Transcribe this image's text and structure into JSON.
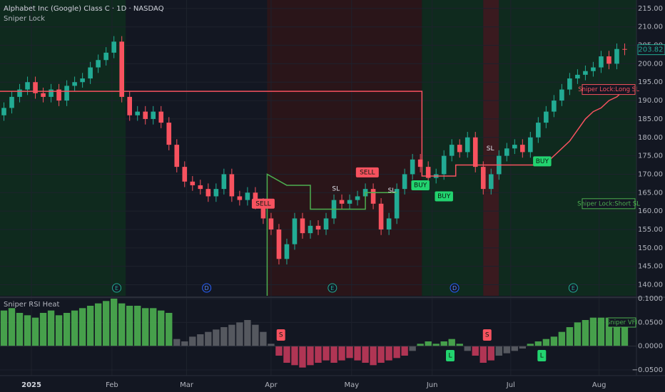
{
  "chart_data": {
    "type": "candlestick",
    "title": "Alphabet Inc (Google) Class C · 1D · NASDAQ",
    "subtitle": "Sniper Lock",
    "up_color": "#22ab94",
    "down_color": "#f7525f",
    "xlim": [
      -1,
      161
    ],
    "ylim": [
      137,
      217.3
    ],
    "xticks": [
      {
        "value": 7,
        "label": "2025"
      },
      {
        "value": 27.5,
        "label": "Feb"
      },
      {
        "value": 46.5,
        "label": "Mar"
      },
      {
        "value": 68,
        "label": "Apr"
      },
      {
        "value": 88.5,
        "label": "May"
      },
      {
        "value": 109,
        "label": "Jun"
      },
      {
        "value": 129,
        "label": "Jul"
      },
      {
        "value": 151.5,
        "label": "Aug"
      }
    ],
    "yticks": [
      {
        "value": 140,
        "label": "140.00"
      },
      {
        "value": 145,
        "label": "145.00"
      },
      {
        "value": 150,
        "label": "150.00"
      },
      {
        "value": 155,
        "label": "155.00"
      },
      {
        "value": 160,
        "label": "160.00"
      },
      {
        "value": 165,
        "label": "165.00"
      },
      {
        "value": 170,
        "label": "170.00"
      },
      {
        "value": 175,
        "label": "175.00"
      },
      {
        "value": 180,
        "label": "180.00"
      },
      {
        "value": 185,
        "label": "185.00"
      },
      {
        "value": 190,
        "label": "190.00"
      },
      {
        "value": 195,
        "label": "195.00"
      },
      {
        "value": 200,
        "label": "200.00"
      },
      {
        "value": 205,
        "label": "205.00"
      },
      {
        "value": 210,
        "label": "210.00"
      },
      {
        "value": 215,
        "label": "215.00"
      }
    ],
    "grid": true,
    "last_price": 203.82,
    "zones": [
      {
        "from": -1,
        "to": 31,
        "color": "#0f2a1e"
      },
      {
        "from": 67,
        "to": 106.4,
        "color": "#2a1519"
      },
      {
        "from": 106.4,
        "to": 122,
        "color": "#0f2a1e"
      },
      {
        "from": 122,
        "to": 126,
        "color": "#3a1a1f"
      },
      {
        "from": 126,
        "to": 161,
        "color": "#0f2a1e"
      }
    ],
    "candles": {
      "x": [
        0,
        2,
        4,
        6,
        8,
        10,
        12,
        14,
        16,
        18,
        20,
        22,
        24,
        26,
        28,
        30,
        32,
        34,
        36,
        38,
        40,
        42,
        44,
        46,
        48,
        50,
        52,
        54,
        56,
        58,
        60,
        62,
        64,
        66,
        68,
        70,
        72,
        74,
        76,
        78,
        80,
        82,
        84,
        86,
        88,
        90,
        92,
        94,
        96,
        98,
        100,
        102,
        104,
        106,
        108,
        110,
        112,
        114,
        116,
        118,
        120,
        122,
        124,
        126,
        128,
        130,
        132,
        134,
        136,
        138,
        140,
        142,
        144,
        146,
        148,
        150,
        152,
        154,
        156,
        158
      ],
      "open": [
        186,
        188,
        191,
        193,
        195,
        192,
        191,
        193,
        190,
        194,
        195,
        196,
        199,
        201,
        203,
        206,
        191,
        186,
        187,
        185,
        187,
        184,
        178,
        172,
        168,
        167,
        166,
        164,
        166,
        170,
        164,
        163,
        165,
        162,
        158,
        155,
        147,
        151,
        158,
        154,
        156,
        155,
        158,
        163,
        162,
        163,
        164,
        166,
        162,
        155,
        158,
        166,
        170,
        174,
        172,
        169,
        170,
        175,
        178,
        176,
        180,
        172,
        166,
        170,
        175,
        177,
        178,
        176,
        180,
        184,
        187,
        190,
        193,
        196,
        197,
        198,
        199,
        202,
        200,
        204
      ],
      "high": [
        189.5,
        192.5,
        194.5,
        196.5,
        196.5,
        193.5,
        194.5,
        194.5,
        195.5,
        196.5,
        197.5,
        200.5,
        202.5,
        204.5,
        207.5,
        207.5,
        192.5,
        188.5,
        188.5,
        188.5,
        188.5,
        185.5,
        179.5,
        173.5,
        169.5,
        168.5,
        167.5,
        167.5,
        171.5,
        171.5,
        165.5,
        166.5,
        166.5,
        163.5,
        159.5,
        156.5,
        152.5,
        159.5,
        159.5,
        157.5,
        157.5,
        159.5,
        164.5,
        164.5,
        164.5,
        165.5,
        167.5,
        167.5,
        163.5,
        159.5,
        167.5,
        171.5,
        175.5,
        175.5,
        173.5,
        171.5,
        176.5,
        179.5,
        179.5,
        181.5,
        181.5,
        173.5,
        171.5,
        176.5,
        178.5,
        179.5,
        179.5,
        181.5,
        185.5,
        188.5,
        191.5,
        194.5,
        197.5,
        198.5,
        199.5,
        200.5,
        203.5,
        203.5,
        205.5,
        205.5
      ],
      "low": [
        184.5,
        186.5,
        189.5,
        191.5,
        190.5,
        189.5,
        189.5,
        188.5,
        188.5,
        192.5,
        193.5,
        194.5,
        197.5,
        199.5,
        201.5,
        189.5,
        184.5,
        184.5,
        183.5,
        183.5,
        182.5,
        176.5,
        170.5,
        166.5,
        165.5,
        164.5,
        162.5,
        162.5,
        164.5,
        162.5,
        161.5,
        161.5,
        160.5,
        156.5,
        153.5,
        145.5,
        145.5,
        149.5,
        152.5,
        152.5,
        153.5,
        153.5,
        156.5,
        160.5,
        160.5,
        161.5,
        162.5,
        160.5,
        153.5,
        153.5,
        156.5,
        164.5,
        168.5,
        170.5,
        167.5,
        167.5,
        168.5,
        173.5,
        174.5,
        174.5,
        170.5,
        164.5,
        164.5,
        168.5,
        173.5,
        175.5,
        174.5,
        174.5,
        178.5,
        182.5,
        185.5,
        188.5,
        191.5,
        194.5,
        195.5,
        196.5,
        197.5,
        198.5,
        198.5,
        202.32
      ],
      "close": [
        188,
        191,
        193,
        195,
        192,
        191,
        193,
        190,
        194,
        195,
        196,
        199,
        201,
        203,
        206,
        191,
        186,
        187,
        185,
        187,
        184,
        178,
        172,
        168,
        167,
        166,
        164,
        166,
        170,
        164,
        163,
        165,
        162,
        158,
        155,
        147,
        151,
        158,
        154,
        156,
        155,
        158,
        163,
        162,
        163,
        164,
        166,
        162,
        155,
        158,
        166,
        170,
        174,
        172,
        169,
        170,
        175,
        178,
        176,
        180,
        172,
        166,
        170,
        175,
        177,
        178,
        176,
        180,
        184,
        187,
        190,
        193,
        196,
        197,
        198,
        199,
        202,
        200,
        204,
        203.82
      ]
    },
    "series": [
      {
        "name": "Sniper Lock:Long SL",
        "color": "#f7525f",
        "label_at": 193,
        "x": [
          -1,
          106.4,
          106.4,
          115,
          115,
          137,
          138,
          140,
          142,
          144,
          146,
          148,
          150,
          152,
          154,
          156,
          158
        ],
        "values": [
          192.5,
          192.5,
          169.5,
          169.5,
          172.5,
          172.5,
          173,
          175,
          177,
          179,
          182,
          185,
          187,
          188,
          190,
          191,
          193
        ]
      },
      {
        "name": "Sniper Lock:Short SL",
        "color": "#4caf50",
        "label_at": 162,
        "x": [
          67,
          67,
          72,
          78,
          78,
          92,
          92,
          100
        ],
        "values": [
          137,
          170,
          167,
          167,
          160.5,
          160.5,
          165,
          165
        ]
      }
    ],
    "annotations": [
      {
        "text": "SELL",
        "x": 66,
        "y": 162,
        "color": "#f7525f"
      },
      {
        "text": "SELL",
        "x": 92.5,
        "y": 170.5,
        "color": "#f7525f"
      },
      {
        "text": "BUY",
        "x": 106,
        "y": 167,
        "color": "#22d36f"
      },
      {
        "text": "BUY",
        "x": 112,
        "y": 164,
        "color": "#22d36f"
      },
      {
        "text": "BUY",
        "x": 137,
        "y": 173.5,
        "color": "#22d36f"
      },
      {
        "text": "SL",
        "x": 84.5,
        "y": 166,
        "color": ""
      },
      {
        "text": "SL",
        "x": 98.7,
        "y": 165.5,
        "color": ""
      },
      {
        "text": "SL",
        "x": 123.8,
        "y": 177,
        "color": ""
      }
    ],
    "events": [
      {
        "label": "E",
        "x": 28.7
      },
      {
        "label": "D",
        "x": 51.6
      },
      {
        "label": "E",
        "x": 83.6
      },
      {
        "label": "D",
        "x": 114.7
      },
      {
        "label": "E",
        "x": 144.9
      }
    ],
    "indicator": {
      "title": "Sniper RSI Heat",
      "label": "Sniper VFI",
      "ylim": [
        -0.062,
        0.1
      ],
      "yticks": [
        {
          "value": -0.05,
          "label": "−0.0500"
        },
        {
          "value": 0,
          "label": "0.0000"
        },
        {
          "value": 0.05,
          "label": "0.0500"
        },
        {
          "value": 0.1,
          "label": "0.1000"
        }
      ],
      "palette": {
        "g": "#4caf50",
        "n": "#5d5f66",
        "r": "#c2385a"
      },
      "values": [
        0.075,
        0.08,
        0.07,
        0.065,
        0.06,
        0.07,
        0.075,
        0.065,
        0.07,
        0.075,
        0.08,
        0.085,
        0.09,
        0.095,
        0.1,
        0.09,
        0.085,
        0.085,
        0.08,
        0.08,
        0.075,
        0.07,
        0.015,
        0.01,
        0.02,
        0.025,
        0.03,
        0.035,
        0.04,
        0.045,
        0.05,
        0.055,
        0.045,
        0.03,
        0.005,
        -0.02,
        -0.035,
        -0.04,
        -0.045,
        -0.04,
        -0.035,
        -0.03,
        -0.035,
        -0.03,
        -0.025,
        -0.03,
        -0.035,
        -0.04,
        -0.035,
        -0.03,
        -0.025,
        -0.02,
        -0.01,
        0.005,
        0.01,
        0.005,
        0.01,
        0.015,
        0.005,
        -0.01,
        -0.02,
        -0.035,
        -0.03,
        -0.02,
        -0.015,
        -0.01,
        -0.005,
        0.005,
        0.01,
        0.015,
        0.02,
        0.03,
        0.04,
        0.05,
        0.055,
        0.06,
        0.06,
        0.06,
        0.06,
        0.06
      ],
      "tones": [
        "g",
        "g",
        "g",
        "g",
        "g",
        "g",
        "g",
        "g",
        "g",
        "g",
        "g",
        "g",
        "g",
        "g",
        "g",
        "g",
        "g",
        "g",
        "g",
        "g",
        "g",
        "g",
        "n",
        "n",
        "n",
        "n",
        "n",
        "n",
        "n",
        "n",
        "n",
        "n",
        "n",
        "n",
        "n",
        "r",
        "r",
        "r",
        "r",
        "r",
        "r",
        "r",
        "r",
        "r",
        "r",
        "r",
        "r",
        "r",
        "r",
        "r",
        "r",
        "r",
        "n",
        "g",
        "g",
        "g",
        "g",
        "g",
        "g",
        "n",
        "r",
        "r",
        "r",
        "n",
        "n",
        "n",
        "n",
        "g",
        "g",
        "g",
        "g",
        "g",
        "g",
        "g",
        "g",
        "g",
        "g",
        "g",
        "g",
        "g"
      ],
      "signals": [
        {
          "text": "S",
          "x": 70.5,
          "color": "#f7525f"
        },
        {
          "text": "L",
          "x": 113.6,
          "color": "#22d36f"
        },
        {
          "text": "S",
          "x": 123,
          "color": "#f7525f"
        },
        {
          "text": "L",
          "x": 136.9,
          "color": "#22d36f"
        }
      ]
    }
  }
}
